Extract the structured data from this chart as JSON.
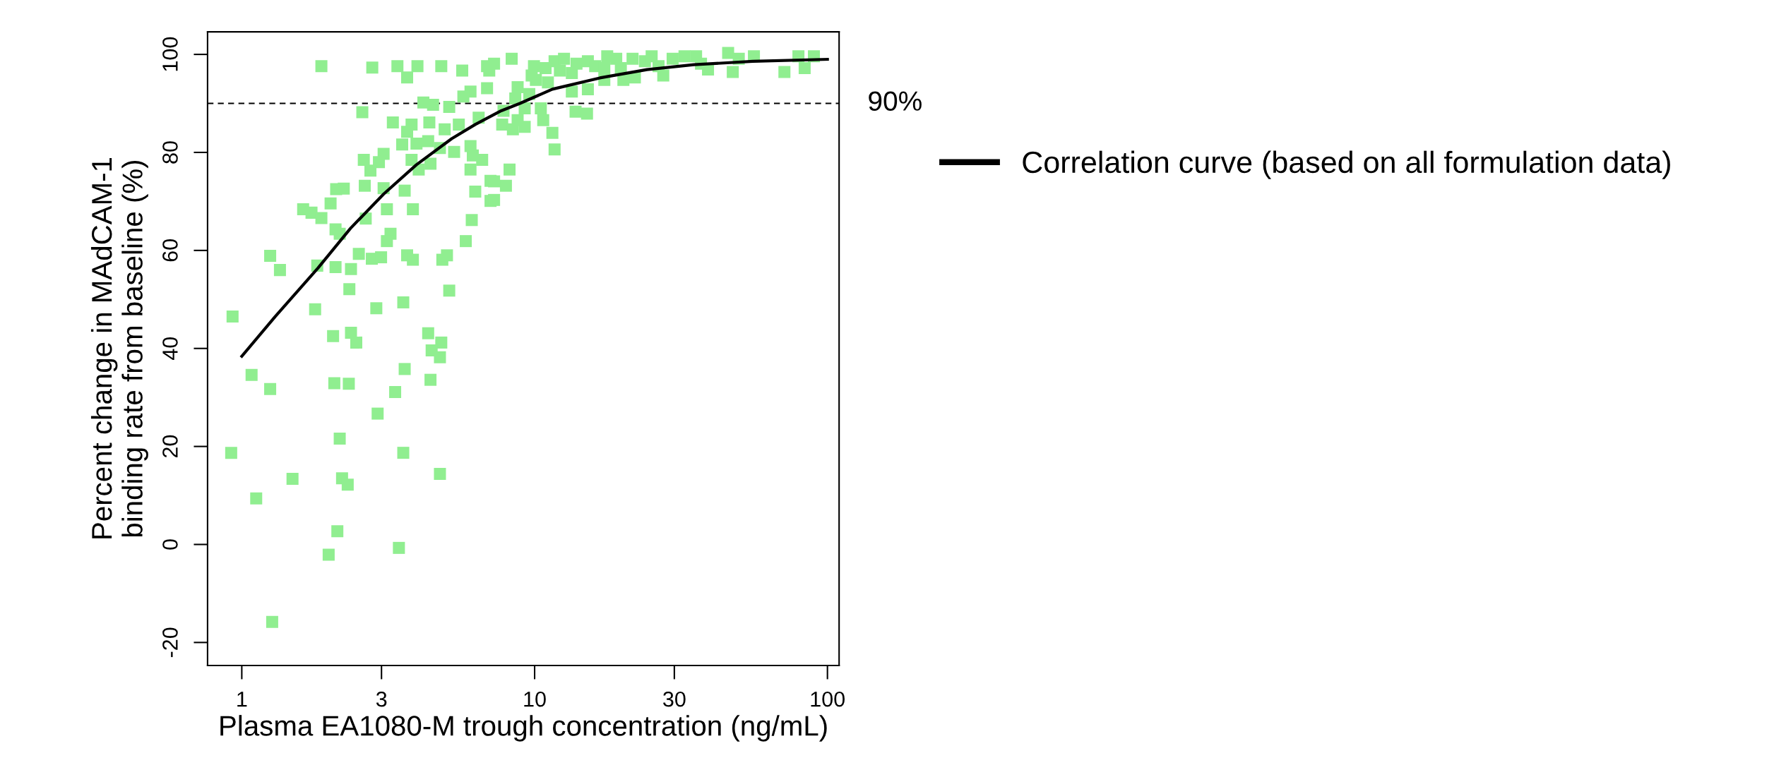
{
  "chart_data": {
    "type": "scatter",
    "xlabel": "Plasma EA1080-M trough concentration (ng/mL)",
    "ylabel": "Percent change in MAdCAM-1\nbinding rate from baseline (%)",
    "log": "x",
    "xlim": [
      0.764,
      109.6
    ],
    "ylim": [
      -24.7,
      104.6
    ],
    "xticks": [
      1,
      3,
      10,
      30,
      100
    ],
    "yticks": [
      -20,
      0,
      20,
      40,
      60,
      80,
      100
    ],
    "grid": false,
    "legend": "right",
    "ref_lines": [
      {
        "axis": "y",
        "value": 90,
        "label": "90%",
        "color": "#000000",
        "line_style": "dashed"
      }
    ],
    "series": [
      {
        "color": "#90ee90",
        "marker": "square",
        "x": [
          1.87,
          2.79,
          3.4,
          3.67,
          3.98,
          4.8,
          5.66,
          6.88,
          7.0,
          6.04,
          6.88,
          5.71,
          4.17,
          4.5,
          5.11,
          2.58,
          3.28,
          3.8,
          4.37,
          3.67,
          4.93,
          5.51,
          6.44,
          3.53,
          3.95,
          4.33,
          4.75,
          5.31,
          6.04,
          6.15,
          6.62,
          3.8,
          4.41,
          4.02,
          6.04,
          2.61,
          3.05,
          2.94,
          2.75,
          7.07,
          6.27,
          7.07,
          2.1,
          2.23,
          2.63,
          3.05,
          3.6,
          2.01,
          1.62,
          1.73,
          1.87,
          3.13,
          3.84,
          2.65,
          2.09,
          2.16,
          3.22,
          3.13,
          6.1,
          5.82,
          1.25,
          1.35,
          1.81,
          2.09,
          2.36,
          2.51,
          2.78,
          2.99,
          3.67,
          3.84,
          4.84,
          5.02,
          2.33,
          5.11,
          1.78,
          2.88,
          3.56,
          0.93,
          2.05,
          2.36,
          2.46,
          4.33,
          4.8,
          4.45,
          4.75,
          1.08,
          1.25,
          2.07,
          2.32,
          3.6,
          3.34,
          4.41,
          2.91,
          2.16,
          0.92,
          3.56,
          4.75,
          1.49,
          2.2,
          2.3,
          1.12,
          2.12,
          1.98,
          3.44,
          1.27,
          8.35,
          7.27,
          9.95,
          9.77,
          10.9,
          11.7,
          12.6,
          13.9,
          13.4,
          11.1,
          15.2,
          16.1,
          17.7,
          17.3,
          17.3,
          19.0,
          19.7,
          20.1,
          21.6,
          22.0,
          23.8,
          25.1,
          26.5,
          27.5,
          29.6,
          32.5,
          35.6,
          37.0,
          39.1,
          45.8,
          47.5,
          49.8,
          56.1,
          71.3,
          79.6,
          83.6,
          89.9,
          8.75,
          9.59,
          8.59,
          13.4,
          15.2,
          7.83,
          9.25,
          10.5,
          8.75,
          7.75,
          8.43,
          9.25,
          10.7,
          13.8,
          15.1,
          11.5,
          11.7,
          8.21,
          7.98,
          7.27,
          7.27,
          10.1,
          12.2
        ],
        "values": [
          97.6,
          97.3,
          97.6,
          95.3,
          97.6,
          97.6,
          96.7,
          97.6,
          96.7,
          92.4,
          93.1,
          91.4,
          90.2,
          89.7,
          89.3,
          88.2,
          86.1,
          85.7,
          86.1,
          84.2,
          84.7,
          85.7,
          87.1,
          81.6,
          81.8,
          82.3,
          80.9,
          80.1,
          81.3,
          79.4,
          78.5,
          78.5,
          77.7,
          76.5,
          76.5,
          78.5,
          79.7,
          78.0,
          76.3,
          74.2,
          72.0,
          70.1,
          72.5,
          72.6,
          73.2,
          72.7,
          72.2,
          69.6,
          68.4,
          67.7,
          66.6,
          68.4,
          68.4,
          66.5,
          64.3,
          63.4,
          63.4,
          61.9,
          66.2,
          61.9,
          58.9,
          56.0,
          56.9,
          56.6,
          56.2,
          59.3,
          58.3,
          58.6,
          59.0,
          58.1,
          58.1,
          59.0,
          52.1,
          51.8,
          48.0,
          48.2,
          49.4,
          46.5,
          42.5,
          43.2,
          41.2,
          43.1,
          41.2,
          39.6,
          38.2,
          34.6,
          31.7,
          32.9,
          32.8,
          35.8,
          31.1,
          33.6,
          26.7,
          21.6,
          18.7,
          18.7,
          14.4,
          13.4,
          13.5,
          12.2,
          9.4,
          2.7,
          -2.1,
          -0.7,
          -15.8,
          99.1,
          98.1,
          97.6,
          95.7,
          97.2,
          98.6,
          99.1,
          98.1,
          96.2,
          94.3,
          98.6,
          97.6,
          99.6,
          97.2,
          94.8,
          99.1,
          97.2,
          94.8,
          99.1,
          95.3,
          98.6,
          99.6,
          97.6,
          95.7,
          99.1,
          99.6,
          99.6,
          98.1,
          96.9,
          100.3,
          96.4,
          99.1,
          99.6,
          96.4,
          99.6,
          97.2,
          99.6,
          93.3,
          91.9,
          91.0,
          92.4,
          92.9,
          88.5,
          89.0,
          89.0,
          86.6,
          85.7,
          84.7,
          85.2,
          86.6,
          88.3,
          87.9,
          84.0,
          80.6,
          76.5,
          73.2,
          74.1,
          70.3,
          94.8,
          96.7
        ]
      },
      {
        "type": "line",
        "name": "Correlation curve (based on all formulation data)",
        "color": "#000000",
        "line_style": "solid",
        "x": [
          1.0,
          1.3,
          1.82,
          2.35,
          3.05,
          3.95,
          5.21,
          6.27,
          7.69,
          8.91,
          11.5,
          16.7,
          24.2,
          35.0,
          55.6,
          100
        ],
        "values": [
          38.4,
          46.5,
          56.4,
          64.5,
          71.5,
          77.5,
          82.8,
          85.7,
          88.5,
          90.0,
          92.9,
          95.2,
          96.9,
          97.9,
          98.6,
          99.0
        ]
      }
    ]
  }
}
